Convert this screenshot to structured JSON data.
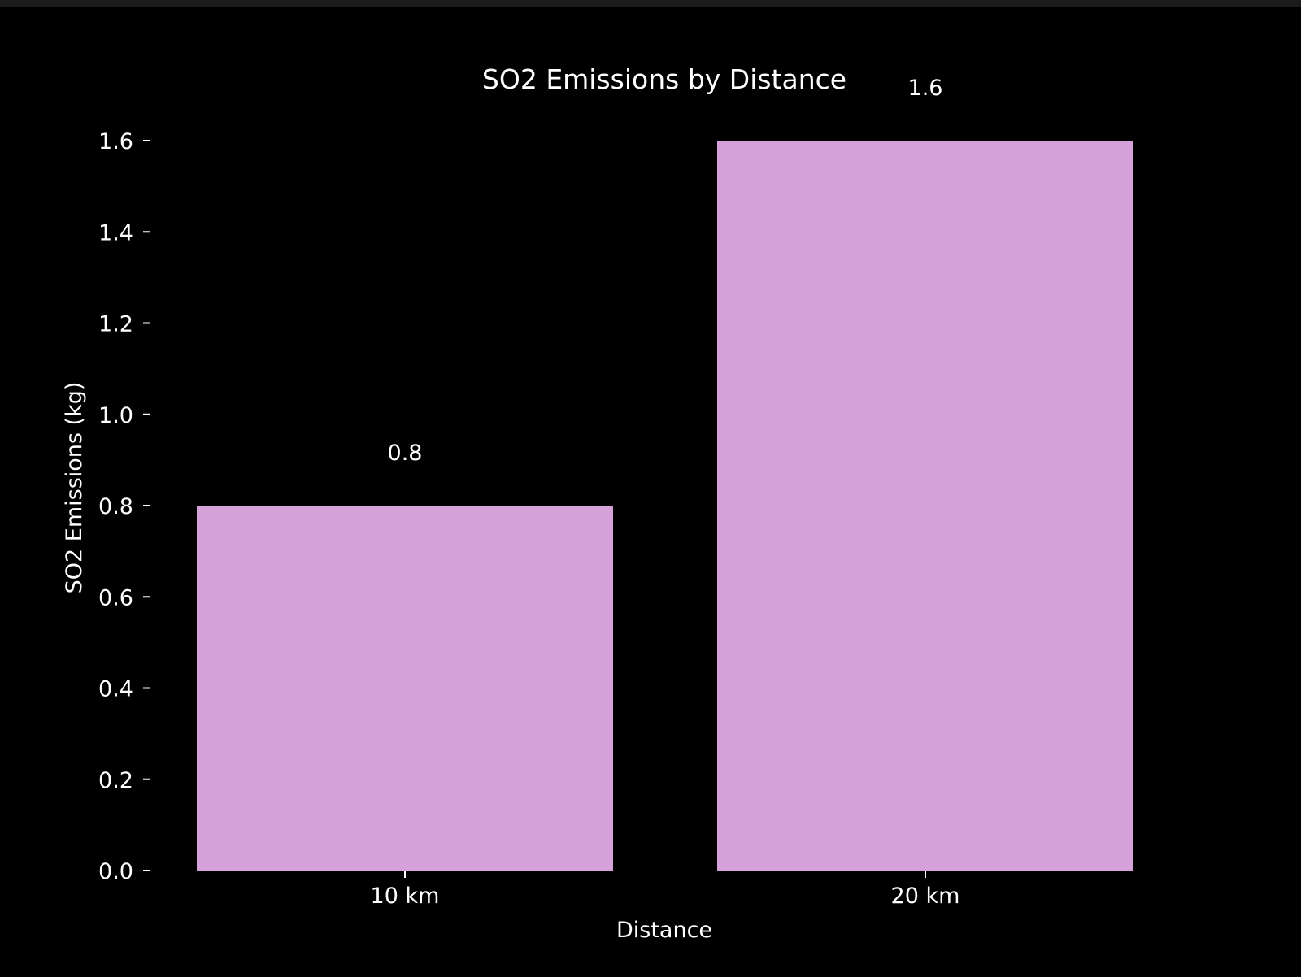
{
  "chart_data": {
    "type": "bar",
    "title": "SO2 Emissions by Distance",
    "xlabel": "Distance",
    "ylabel": "SO2 Emissions (kg)",
    "categories": [
      "10 km",
      "20 km"
    ],
    "values": [
      0.8,
      1.6
    ],
    "data_labels": [
      "0.8",
      "1.6"
    ],
    "yticks": [
      0.0,
      0.2,
      0.4,
      0.6,
      0.8,
      1.0,
      1.2,
      1.4,
      1.6
    ],
    "ytick_labels": [
      "0.0",
      "0.2",
      "0.4",
      "0.6",
      "0.8",
      "1.0",
      "1.2",
      "1.4",
      "1.6"
    ],
    "ylim": [
      0,
      1.6
    ],
    "grid": false,
    "legend": "none",
    "colors": {
      "background": "#000000",
      "bar": "#d4a2d9",
      "text": "#ffffff"
    }
  }
}
